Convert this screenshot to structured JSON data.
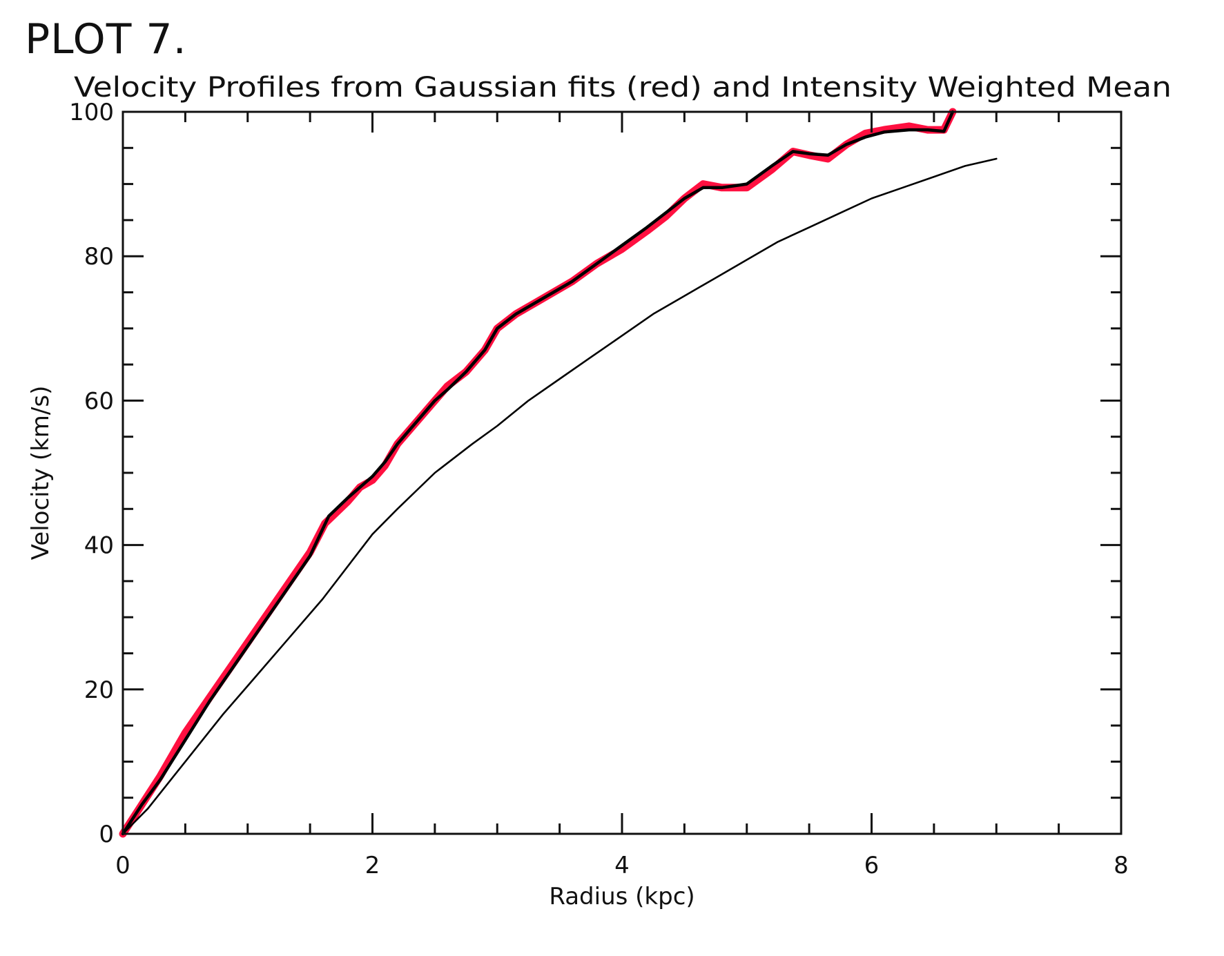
{
  "page_label": "PLOT 7.",
  "chart_data": {
    "type": "line",
    "title": "Velocity Profiles from Gaussian fits (red) and Intensity Weighted Mean",
    "xlabel": "Radius (kpc)",
    "ylabel": "Velocity (km/s)",
    "xlim": [
      0,
      8
    ],
    "ylim": [
      0,
      100
    ],
    "xticks": [
      "0",
      "2",
      "4",
      "6",
      "8"
    ],
    "yticks": [
      "0",
      "20",
      "40",
      "60",
      "80",
      "100"
    ],
    "colors": {
      "gaussian": "#ff1040",
      "mean": "#000000"
    },
    "series": [
      {
        "style": "red-underlay",
        "x": [
          0,
          0.15,
          0.3,
          0.5,
          0.7,
          0.9,
          1.1,
          1.3,
          1.5,
          1.62,
          1.8,
          1.9,
          2.0,
          2.1,
          2.2,
          2.35,
          2.5,
          2.6,
          2.75,
          2.9,
          3.0,
          3.15,
          3.3,
          3.45,
          3.6,
          3.8,
          4.0,
          4.2,
          4.35,
          4.5,
          4.65,
          4.8,
          5.0,
          5.2,
          5.37,
          5.5,
          5.65,
          5.8,
          5.95,
          6.1,
          6.3,
          6.45,
          6.58,
          6.65
        ],
        "y": [
          0,
          4,
          8,
          14,
          19,
          24,
          29,
          34,
          39,
          43,
          46,
          48,
          49,
          51,
          54,
          57,
          60,
          62,
          64,
          67,
          70,
          72,
          73.5,
          75,
          76.5,
          79,
          81,
          83.5,
          85.5,
          88,
          90,
          89.5,
          89.5,
          92,
          94.5,
          94,
          93.5,
          95.5,
          97,
          97.5,
          98,
          97.5,
          97.5,
          100
        ]
      },
      {
        "style": "black-thick",
        "x": [
          0,
          0.15,
          0.3,
          0.5,
          0.7,
          0.9,
          1.1,
          1.3,
          1.5,
          1.65,
          1.8,
          1.9,
          2.0,
          2.1,
          2.2,
          2.35,
          2.5,
          2.6,
          2.75,
          2.9,
          3.0,
          3.15,
          3.3,
          3.45,
          3.6,
          3.8,
          4.0,
          4.2,
          4.35,
          4.5,
          4.65,
          4.8,
          5.0,
          5.2,
          5.37,
          5.5,
          5.65,
          5.8,
          5.95,
          6.1,
          6.3,
          6.45,
          6.58,
          6.65
        ],
        "y": [
          0,
          4,
          7.5,
          13,
          18.5,
          23.5,
          28.5,
          33.5,
          38.5,
          44,
          46.5,
          48,
          49.5,
          51.5,
          54,
          57,
          60,
          61.5,
          64,
          67,
          70,
          72,
          73.5,
          75,
          76.5,
          79,
          81.5,
          84,
          86,
          88,
          89.5,
          89.5,
          90,
          92.5,
          94.5,
          94.2,
          94,
          95.5,
          96.5,
          97.2,
          97.5,
          97.5,
          97.3,
          100
        ]
      },
      {
        "style": "black-thin",
        "x": [
          0,
          0.2,
          0.5,
          0.8,
          1.0,
          1.3,
          1.6,
          2.0,
          2.2,
          2.5,
          2.8,
          3.0,
          3.25,
          3.5,
          3.75,
          4.0,
          4.25,
          4.5,
          4.75,
          5.0,
          5.25,
          5.5,
          5.75,
          6.0,
          6.25,
          6.5,
          6.75,
          7.0
        ],
        "y": [
          0,
          3.5,
          10,
          16.5,
          20.5,
          26.5,
          32.5,
          41.5,
          45,
          50,
          54,
          56.5,
          60,
          63,
          66,
          69,
          72,
          74.5,
          77,
          79.5,
          82,
          84,
          86,
          88,
          89.5,
          91,
          92.5,
          93.5
        ]
      }
    ]
  }
}
